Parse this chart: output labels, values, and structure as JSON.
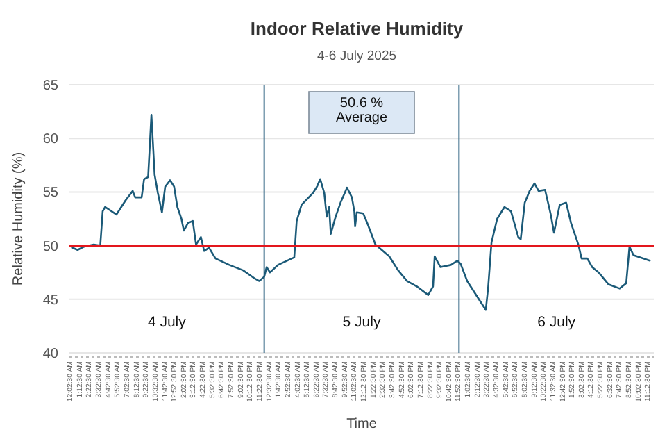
{
  "chart_data": {
    "type": "line",
    "title": "Indoor Relative Humidity",
    "subtitle": "4-6 July 2025",
    "xlabel": "Time",
    "ylabel": "Relative Humidity (%)",
    "x": [
      "2025-07-04T00:24",
      "2025-07-04T01:00",
      "2025-07-04T01:48",
      "2025-07-04T03:00",
      "2025-07-04T03:48",
      "2025-07-04T04:06",
      "2025-07-04T04:24",
      "2025-07-04T05:48",
      "2025-07-04T06:54",
      "2025-07-04T07:48",
      "2025-07-04T08:06",
      "2025-07-04T08:54",
      "2025-07-04T09:12",
      "2025-07-04T09:42",
      "2025-07-04T10:06",
      "2025-07-04T10:30",
      "2025-07-04T10:54",
      "2025-07-04T11:24",
      "2025-07-04T11:48",
      "2025-07-04T12:24",
      "2025-07-04T12:54",
      "2025-07-04T13:18",
      "2025-07-04T13:48",
      "2025-07-04T14:06",
      "2025-07-04T14:36",
      "2025-07-04T15:12",
      "2025-07-04T15:36",
      "2025-07-04T16:12",
      "2025-07-04T16:36",
      "2025-07-04T17:12",
      "2025-07-04T18:00",
      "2025-07-04T19:42",
      "2025-07-04T21:24",
      "2025-07-04T22:54",
      "2025-07-04T23:24",
      "2025-07-05T00:00",
      "2025-07-05T00:18",
      "2025-07-05T00:42",
      "2025-07-05T01:42",
      "2025-07-05T03:24",
      "2025-07-05T03:42",
      "2025-07-05T04:00",
      "2025-07-05T04:36",
      "2025-07-05T06:00",
      "2025-07-05T06:30",
      "2025-07-05T06:54",
      "2025-07-05T07:24",
      "2025-07-05T07:42",
      "2025-07-05T08:00",
      "2025-07-05T08:12",
      "2025-07-05T08:48",
      "2025-07-05T09:24",
      "2025-07-05T10:12",
      "2025-07-05T10:48",
      "2025-07-05T11:06",
      "2025-07-05T11:12",
      "2025-07-05T11:24",
      "2025-07-05T12:12",
      "2025-07-05T12:48",
      "2025-07-05T13:42",
      "2025-07-05T15:24",
      "2025-07-05T16:30",
      "2025-07-05T17:36",
      "2025-07-05T18:48",
      "2025-07-05T20:12",
      "2025-07-05T20:48",
      "2025-07-05T21:00",
      "2025-07-05T21:42",
      "2025-07-05T23:00",
      "2025-07-05T23:48",
      "2025-07-06T00:12",
      "2025-07-06T01:00",
      "2025-07-06T03:18",
      "2025-07-06T03:36",
      "2025-07-06T04:00",
      "2025-07-06T04:42",
      "2025-07-06T05:36",
      "2025-07-06T06:24",
      "2025-07-06T07:18",
      "2025-07-06T07:36",
      "2025-07-06T08:06",
      "2025-07-06T08:42",
      "2025-07-06T09:18",
      "2025-07-06T09:48",
      "2025-07-06T10:36",
      "2025-07-06T11:18",
      "2025-07-06T11:42",
      "2025-07-06T12:24",
      "2025-07-06T13:12",
      "2025-07-06T13:48",
      "2025-07-06T14:42",
      "2025-07-06T15:06",
      "2025-07-06T15:48",
      "2025-07-06T16:24",
      "2025-07-06T17:12",
      "2025-07-06T18:24",
      "2025-07-06T19:48",
      "2025-07-06T20:36",
      "2025-07-06T21:00",
      "2025-07-06T21:30",
      "2025-07-06T22:18",
      "2025-07-06T23:30"
    ],
    "series": [
      {
        "color": "#1b5a78",
        "values": [
          49.8,
          49.6,
          49.9,
          50.1,
          50.0,
          53.2,
          53.6,
          52.9,
          54.2,
          55.1,
          54.5,
          54.5,
          56.2,
          56.4,
          62.2,
          56.6,
          54.9,
          53.1,
          55.5,
          56.1,
          55.5,
          53.6,
          52.5,
          51.4,
          52.1,
          52.3,
          50.1,
          50.8,
          49.5,
          49.8,
          48.8,
          48.2,
          47.7,
          46.9,
          46.7,
          47.1,
          48.0,
          47.5,
          48.2,
          48.8,
          48.9,
          52.3,
          53.8,
          54.9,
          55.5,
          56.2,
          54.9,
          52.7,
          53.6,
          51.1,
          52.7,
          54.0,
          55.4,
          54.5,
          53.2,
          51.8,
          53.1,
          53.0,
          51.9,
          50.1,
          49.0,
          47.7,
          46.7,
          46.2,
          45.4,
          46.2,
          49.0,
          48.0,
          48.2,
          48.6,
          48.3,
          46.7,
          44.0,
          46.2,
          50.3,
          52.5,
          53.6,
          53.2,
          50.8,
          50.6,
          54.0,
          55.1,
          55.8,
          55.1,
          55.2,
          52.9,
          51.2,
          53.8,
          54.0,
          52.1,
          50.1,
          48.8,
          48.8,
          48.0,
          47.5,
          46.4,
          46.0,
          46.5,
          49.9,
          49.1,
          48.9,
          48.6
        ]
      }
    ],
    "xlim": [
      "2025-07-04T00:00",
      "2025-07-07T00:00"
    ],
    "xticks": [
      {
        "value": "2025-07-04T00:02:30",
        "label": "12:02:30 AM"
      },
      {
        "value": "2025-07-04T01:12:30",
        "label": "1:12:30 AM"
      },
      {
        "value": "2025-07-04T02:22:30",
        "label": "2:22:30 AM"
      },
      {
        "value": "2025-07-04T03:32:30",
        "label": "3:32:30 AM"
      },
      {
        "value": "2025-07-04T04:42:30",
        "label": "4:42:30 AM"
      },
      {
        "value": "2025-07-04T05:52:30",
        "label": "5:52:30 AM"
      },
      {
        "value": "2025-07-04T07:02:30",
        "label": "7:02:30 AM"
      },
      {
        "value": "2025-07-04T08:12:30",
        "label": "8:12:30 AM"
      },
      {
        "value": "2025-07-04T09:22:30",
        "label": "9:22:30 AM"
      },
      {
        "value": "2025-07-04T10:32:30",
        "label": "10:32:30 AM"
      },
      {
        "value": "2025-07-04T11:42:30",
        "label": "11:42:30 AM"
      },
      {
        "value": "2025-07-04T12:52:30",
        "label": "12:52:30 PM"
      },
      {
        "value": "2025-07-04T14:02:30",
        "label": "2:02:30 PM"
      },
      {
        "value": "2025-07-04T15:12:30",
        "label": "3:12:30 PM"
      },
      {
        "value": "2025-07-04T16:22:30",
        "label": "4:22:30 PM"
      },
      {
        "value": "2025-07-04T17:32:30",
        "label": "5:32:30 PM"
      },
      {
        "value": "2025-07-04T18:42:30",
        "label": "6:42:30 PM"
      },
      {
        "value": "2025-07-04T19:52:30",
        "label": "7:52:30 PM"
      },
      {
        "value": "2025-07-04T21:02:30",
        "label": "9:02:30 PM"
      },
      {
        "value": "2025-07-04T22:12:30",
        "label": "10:12:30 PM"
      },
      {
        "value": "2025-07-04T23:22:30",
        "label": "11:22:30 PM"
      },
      {
        "value": "2025-07-05T00:32:30",
        "label": "12:32:30 AM"
      },
      {
        "value": "2025-07-05T01:42:30",
        "label": "1:42:30 AM"
      },
      {
        "value": "2025-07-05T02:52:30",
        "label": "2:52:30 AM"
      },
      {
        "value": "2025-07-05T04:02:30",
        "label": "4:02:30 AM"
      },
      {
        "value": "2025-07-05T05:12:30",
        "label": "5:12:30 AM"
      },
      {
        "value": "2025-07-05T06:22:30",
        "label": "6:22:30 AM"
      },
      {
        "value": "2025-07-05T07:32:30",
        "label": "7:32:30 AM"
      },
      {
        "value": "2025-07-05T08:42:30",
        "label": "8:42:30 AM"
      },
      {
        "value": "2025-07-05T09:52:30",
        "label": "9:52:30 AM"
      },
      {
        "value": "2025-07-05T11:02:30",
        "label": "11:02:30 AM"
      },
      {
        "value": "2025-07-05T12:12:30",
        "label": "12:12:30 PM"
      },
      {
        "value": "2025-07-05T13:22:30",
        "label": "1:22:30 PM"
      },
      {
        "value": "2025-07-05T14:32:30",
        "label": "2:32:30 PM"
      },
      {
        "value": "2025-07-05T15:42:30",
        "label": "3:42:30 PM"
      },
      {
        "value": "2025-07-05T16:52:30",
        "label": "4:52:30 PM"
      },
      {
        "value": "2025-07-05T18:02:30",
        "label": "6:02:30 PM"
      },
      {
        "value": "2025-07-05T19:12:30",
        "label": "7:12:30 PM"
      },
      {
        "value": "2025-07-05T20:22:30",
        "label": "8:22:30 PM"
      },
      {
        "value": "2025-07-05T21:32:30",
        "label": "9:32:30 PM"
      },
      {
        "value": "2025-07-05T22:42:30",
        "label": "10:42:30 PM"
      },
      {
        "value": "2025-07-05T23:52:30",
        "label": "11:52:30 PM"
      },
      {
        "value": "2025-07-06T01:02:30",
        "label": "1:02:30 AM"
      },
      {
        "value": "2025-07-06T02:12:30",
        "label": "2:12:30 AM"
      },
      {
        "value": "2025-07-06T03:22:30",
        "label": "3:22:30 AM"
      },
      {
        "value": "2025-07-06T04:32:30",
        "label": "4:32:30 AM"
      },
      {
        "value": "2025-07-06T05:42:30",
        "label": "5:42:30 AM"
      },
      {
        "value": "2025-07-06T06:52:30",
        "label": "6:52:30 AM"
      },
      {
        "value": "2025-07-06T08:02:30",
        "label": "8:02:30 AM"
      },
      {
        "value": "2025-07-06T09:12:30",
        "label": "9:12:30 AM"
      },
      {
        "value": "2025-07-06T10:22:30",
        "label": "10:22:30 AM"
      },
      {
        "value": "2025-07-06T11:32:30",
        "label": "11:32:30 AM"
      },
      {
        "value": "2025-07-06T12:42:30",
        "label": "12:42:30 PM"
      },
      {
        "value": "2025-07-06T13:52:30",
        "label": "1:52:30 PM"
      },
      {
        "value": "2025-07-06T15:02:30",
        "label": "3:02:30 PM"
      },
      {
        "value": "2025-07-06T16:12:30",
        "label": "4:12:30 PM"
      },
      {
        "value": "2025-07-06T17:22:30",
        "label": "5:22:30 PM"
      },
      {
        "value": "2025-07-06T18:32:30",
        "label": "6:32:30 PM"
      },
      {
        "value": "2025-07-06T19:42:30",
        "label": "7:42:30 PM"
      },
      {
        "value": "2025-07-06T20:52:30",
        "label": "8:52:30 PM"
      },
      {
        "value": "2025-07-06T22:02:30",
        "label": "10:02:30 PM"
      },
      {
        "value": "2025-07-06T23:12:30",
        "label": "11:12:30 PM"
      }
    ],
    "ylim": [
      40,
      65
    ],
    "yticks": [
      40,
      45,
      50,
      55,
      60,
      65
    ],
    "grid": "y",
    "ref_lines": [
      {
        "axis": "y",
        "value": 50,
        "color": "#e3171d"
      },
      {
        "axis": "x",
        "value": "2025-07-05T00:00",
        "color": "#3f6f8c"
      },
      {
        "axis": "x",
        "value": "2025-07-06T00:00",
        "color": "#3f6f8c"
      }
    ],
    "annotations": [
      "50.6 %\nAverage",
      "4 July",
      "5 July",
      "6 July"
    ]
  }
}
